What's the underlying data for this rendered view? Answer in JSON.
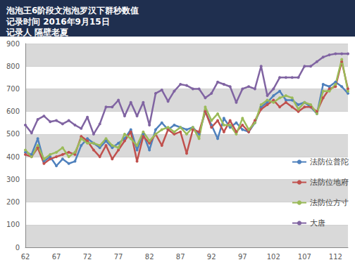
{
  "chart_data": {
    "type": "line",
    "title": "泡泡王6阶段文泡泡罗汉下群秒数值",
    "subtitle": "记录时间 2016年9月15日\n记录人 隔壁老夏",
    "categories": [
      62,
      null,
      null,
      null,
      null,
      67,
      null,
      null,
      null,
      null,
      72,
      null,
      null,
      null,
      null,
      77,
      null,
      null,
      null,
      null,
      82,
      null,
      null,
      null,
      null,
      87,
      null,
      null,
      null,
      null,
      92,
      null,
      null,
      null,
      null,
      97,
      null,
      null,
      null,
      null,
      102,
      null,
      null,
      null,
      null,
      107,
      null,
      null,
      null,
      null,
      112,
      null,
      null
    ],
    "series": [
      {
        "name": "法防位普陀",
        "color": "#4f81bd",
        "values": [
          420,
          410,
          480,
          380,
          400,
          360,
          390,
          370,
          380,
          450,
          480,
          460,
          440,
          470,
          440,
          460,
          480,
          520,
          430,
          500,
          430,
          520,
          550,
          520,
          540,
          530,
          520,
          530,
          500,
          600,
          540,
          480,
          570,
          530,
          550,
          520,
          510,
          550,
          620,
          640,
          670,
          690,
          650,
          650,
          630,
          640,
          620,
          590,
          720,
          710,
          730,
          710,
          680
        ]
      },
      {
        "name": "法防位地府",
        "color": "#c0504d",
        "values": [
          410,
          400,
          440,
          370,
          390,
          400,
          410,
          420,
          410,
          490,
          470,
          430,
          400,
          450,
          390,
          430,
          470,
          510,
          380,
          490,
          460,
          500,
          450,
          520,
          500,
          510,
          415,
          520,
          510,
          600,
          530,
          560,
          510,
          560,
          510,
          540,
          510,
          560,
          610,
          630,
          650,
          620,
          640,
          620,
          600,
          620,
          620,
          600,
          660,
          700,
          710,
          820,
          700
        ]
      },
      {
        "name": "法防位方寸",
        "color": "#9bbb59",
        "values": [
          430,
          400,
          450,
          390,
          410,
          420,
          440,
          400,
          420,
          480,
          460,
          460,
          450,
          480,
          450,
          440,
          500,
          480,
          450,
          510,
          470,
          500,
          520,
          530,
          510,
          530,
          500,
          530,
          480,
          620,
          560,
          590,
          540,
          540,
          500,
          570,
          520,
          550,
          630,
          650,
          640,
          660,
          670,
          660,
          610,
          640,
          630,
          590,
          690,
          690,
          720,
          830,
          690
        ]
      },
      {
        "name": "大唐",
        "color": "#8064a2",
        "values": [
          540,
          505,
          565,
          580,
          555,
          560,
          545,
          560,
          540,
          525,
          575,
          500,
          545,
          620,
          620,
          650,
          580,
          640,
          580,
          640,
          540,
          680,
          695,
          645,
          690,
          720,
          715,
          700,
          700,
          660,
          680,
          730,
          720,
          710,
          640,
          700,
          710,
          700,
          800,
          670,
          700,
          750,
          750,
          750,
          750,
          800,
          800,
          820,
          840,
          850,
          855,
          855,
          855
        ]
      }
    ],
    "ylim": [
      0,
      900
    ],
    "yticks": [
      0,
      100,
      200,
      300,
      400,
      500,
      600,
      700,
      800,
      900
    ],
    "grid": true,
    "legend": "right",
    "marker": "circle"
  }
}
